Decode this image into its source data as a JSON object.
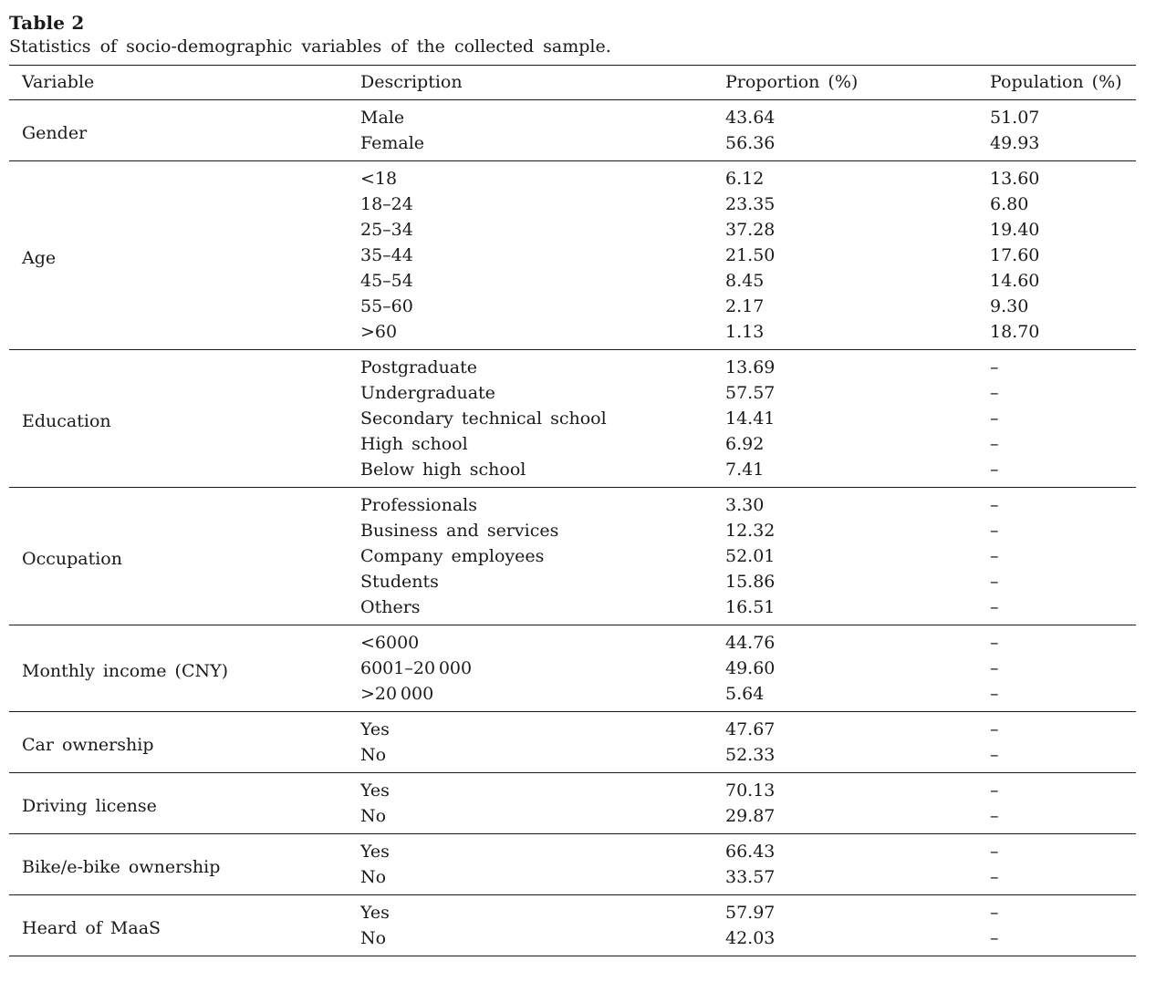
{
  "table": {
    "label": "Table 2",
    "caption": "Statistics of socio-demographic variables of the collected sample.",
    "columns": [
      "Variable",
      "Description",
      "Proportion (%)",
      "Population (%)"
    ],
    "groups": [
      {
        "variable": "Gender",
        "rows": [
          [
            "Male",
            "43.64",
            "51.07"
          ],
          [
            "Female",
            "56.36",
            "49.93"
          ]
        ]
      },
      {
        "variable": "Age",
        "rows": [
          [
            "<18",
            "6.12",
            "13.60"
          ],
          [
            "18–24",
            "23.35",
            "6.80"
          ],
          [
            "25–34",
            "37.28",
            "19.40"
          ],
          [
            "35–44",
            "21.50",
            "17.60"
          ],
          [
            "45–54",
            "8.45",
            "14.60"
          ],
          [
            "55–60",
            "2.17",
            "9.30"
          ],
          [
            ">60",
            "1.13",
            "18.70"
          ]
        ]
      },
      {
        "variable": "Education",
        "rows": [
          [
            "Postgraduate",
            "13.69",
            "–"
          ],
          [
            "Undergraduate",
            "57.57",
            "–"
          ],
          [
            "Secondary technical school",
            "14.41",
            "–"
          ],
          [
            "High school",
            "6.92",
            "–"
          ],
          [
            "Below high school",
            "7.41",
            "–"
          ]
        ]
      },
      {
        "variable": "Occupation",
        "rows": [
          [
            "Professionals",
            "3.30",
            "–"
          ],
          [
            "Business and services",
            "12.32",
            "–"
          ],
          [
            "Company employees",
            "52.01",
            "–"
          ],
          [
            "Students",
            "15.86",
            "–"
          ],
          [
            "Others",
            "16.51",
            "–"
          ]
        ]
      },
      {
        "variable": "Monthly income (CNY)",
        "rows": [
          [
            "<6000",
            "44.76",
            "–"
          ],
          [
            "6001–20 000",
            "49.60",
            "–"
          ],
          [
            ">20 000",
            "5.64",
            "–"
          ]
        ]
      },
      {
        "variable": "Car ownership",
        "rows": [
          [
            "Yes",
            "47.67",
            "–"
          ],
          [
            "No",
            "52.33",
            "–"
          ]
        ]
      },
      {
        "variable": "Driving license",
        "rows": [
          [
            "Yes",
            "70.13",
            "–"
          ],
          [
            "No",
            "29.87",
            "–"
          ]
        ]
      },
      {
        "variable": "Bike/e-bike ownership",
        "rows": [
          [
            "Yes",
            "66.43",
            "–"
          ],
          [
            "No",
            "33.57",
            "–"
          ]
        ]
      },
      {
        "variable": "Heard of MaaS",
        "rows": [
          [
            "Yes",
            "57.97",
            "–"
          ],
          [
            "No",
            "42.03",
            "–"
          ]
        ]
      }
    ]
  }
}
